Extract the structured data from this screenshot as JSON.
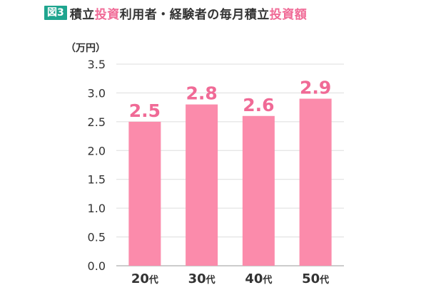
{
  "figure": {
    "badge": "図3",
    "title_parts": [
      {
        "text": "積立",
        "highlight": false
      },
      {
        "text": "投資",
        "highlight": true
      },
      {
        "text": "利用者・経験者の毎月積立",
        "highlight": false
      },
      {
        "text": "投資額",
        "highlight": true
      }
    ]
  },
  "chart_data": {
    "type": "bar",
    "title": "積立投資利用者・経験者の毎月積立投資額",
    "categories": [
      "20",
      "30",
      "40",
      "50"
    ],
    "category_suffix": "代",
    "values": [
      2.5,
      2.8,
      2.6,
      2.9
    ],
    "data_labels": [
      "2.5",
      "2.8",
      "2.6",
      "2.9"
    ],
    "unit_label": "（万円）",
    "ylim": [
      0,
      3.5
    ],
    "yticks": [
      "0.0",
      "0.5",
      "1.0",
      "1.5",
      "2.0",
      "2.5",
      "3.0",
      "3.5"
    ],
    "grid": true,
    "legend": "none",
    "colors": {
      "bar": "#fb8bab",
      "data_label": "#f06a96",
      "grid": "#dddddd",
      "axis": "#bbbbbb",
      "badge": "#1fa58f",
      "highlight": "#f06a96"
    }
  }
}
